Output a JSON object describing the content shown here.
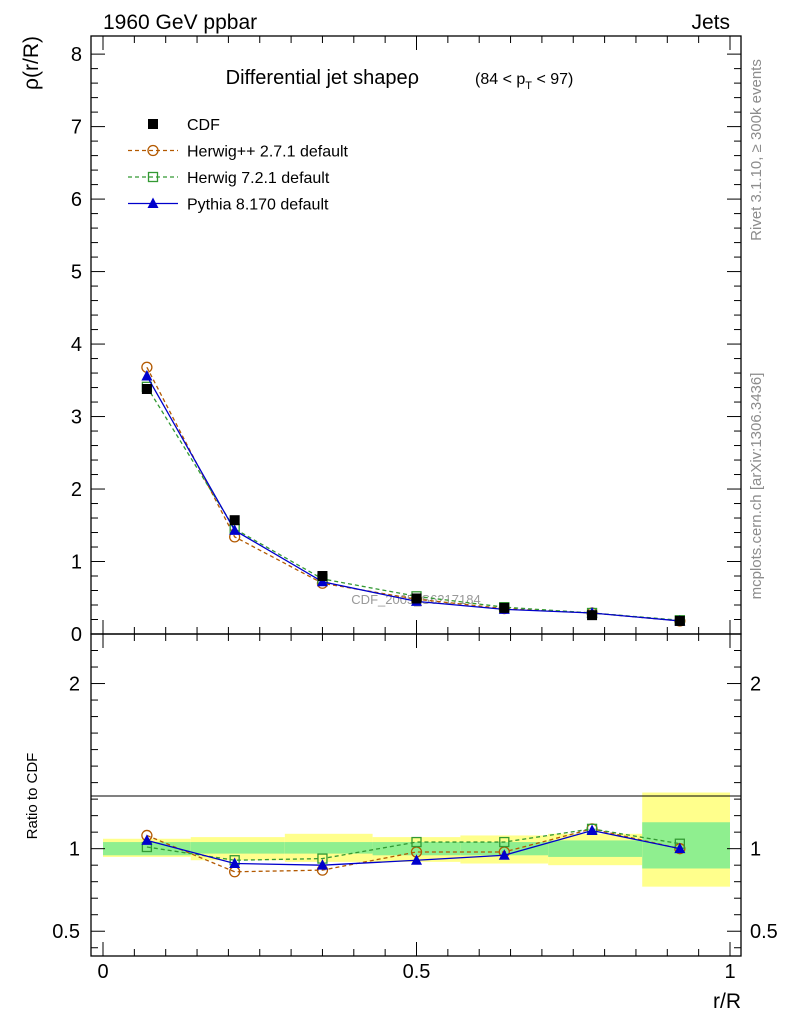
{
  "header": {
    "left": "1960 GeV ppbar",
    "right": "Jets"
  },
  "side_labels": {
    "rivet": "Rivet 3.1.10, ≥ 300k events",
    "mcplots": "mcplots.cern.ch [arXiv:1306.3436]"
  },
  "watermark": "CDF_2005_S6217184",
  "chart_data": [
    {
      "type": "line",
      "panel": "main",
      "title_main": "Differential jet shapeρ",
      "title_cut_pre": "(84 < p",
      "title_cut_sub": "T",
      "title_cut_post": " < 97)",
      "ylabel": "ρ(r/R)",
      "xlim": [
        0,
        1
      ],
      "ylim": [
        0,
        8.25
      ],
      "yticks": [
        0,
        1,
        2,
        3,
        4,
        5,
        6,
        7,
        8
      ],
      "ytick_labels": [
        "0",
        "1",
        "2",
        "3",
        "4",
        "5",
        "6",
        "7",
        "8"
      ],
      "x": [
        0.07,
        0.21,
        0.35,
        0.5,
        0.64,
        0.78,
        0.92
      ],
      "series": [
        {
          "name": "CDF",
          "color": "#000000",
          "marker": "square-filled",
          "values": [
            3.38,
            1.57,
            0.8,
            0.49,
            0.36,
            0.26,
            0.18
          ]
        },
        {
          "name": "Herwig++ 2.7.1 default",
          "color": "#b35900",
          "marker": "circle-open",
          "dash": "4,3",
          "values": [
            3.68,
            1.34,
            0.7,
            0.48,
            0.35,
            0.29,
            0.18
          ]
        },
        {
          "name": "Herwig 7.2.1 default",
          "color": "#339933",
          "marker": "square-open",
          "dash": "4,3",
          "values": [
            3.41,
            1.45,
            0.76,
            0.52,
            0.37,
            0.29,
            0.19
          ]
        },
        {
          "name": "Pythia 8.170 default",
          "color": "#0000cc",
          "marker": "triangle-filled",
          "values": [
            3.56,
            1.43,
            0.72,
            0.45,
            0.34,
            0.29,
            0.18
          ]
        }
      ]
    },
    {
      "type": "line",
      "panel": "ratio",
      "ylabel": "Ratio to CDF",
      "xlabel": "r/R",
      "xlim": [
        0,
        1
      ],
      "ylim": [
        0.35,
        2.3
      ],
      "yticks": [
        0.5,
        1,
        2
      ],
      "ytick_labels": [
        "0.5",
        "1",
        "2"
      ],
      "xticks": [
        0,
        0.5,
        1
      ],
      "xtick_labels": [
        "0",
        "0.5",
        "1"
      ],
      "bins": [
        [
          0,
          0.14
        ],
        [
          0.14,
          0.29
        ],
        [
          0.29,
          0.43
        ],
        [
          0.43,
          0.57
        ],
        [
          0.57,
          0.71
        ],
        [
          0.71,
          0.86
        ],
        [
          0.86,
          1.0
        ]
      ],
      "band_inner": [
        [
          0.96,
          1.04
        ],
        [
          0.97,
          1.04
        ],
        [
          0.97,
          1.04
        ],
        [
          0.96,
          1.04
        ],
        [
          0.96,
          1.04
        ],
        [
          0.95,
          1.05
        ],
        [
          0.88,
          1.16
        ]
      ],
      "band_outer": [
        [
          0.95,
          1.06
        ],
        [
          0.93,
          1.07
        ],
        [
          0.92,
          1.09
        ],
        [
          0.92,
          1.07
        ],
        [
          0.91,
          1.08
        ],
        [
          0.9,
          1.09
        ],
        [
          0.77,
          1.34
        ]
      ],
      "band_colors": {
        "inner": "#8fef8f",
        "outer": "#ffff8c"
      },
      "x": [
        0.07,
        0.21,
        0.35,
        0.5,
        0.64,
        0.78,
        0.92
      ],
      "series": [
        {
          "name": "Herwig++ 2.7.1 default",
          "values": [
            1.08,
            0.86,
            0.87,
            0.98,
            0.98,
            1.12,
            1.0
          ]
        },
        {
          "name": "Herwig 7.2.1 default",
          "values": [
            1.01,
            0.93,
            0.94,
            1.04,
            1.04,
            1.12,
            1.03
          ]
        },
        {
          "name": "Pythia 8.170 default",
          "values": [
            1.05,
            0.91,
            0.9,
            0.93,
            0.96,
            1.11,
            1.0
          ]
        }
      ]
    }
  ]
}
